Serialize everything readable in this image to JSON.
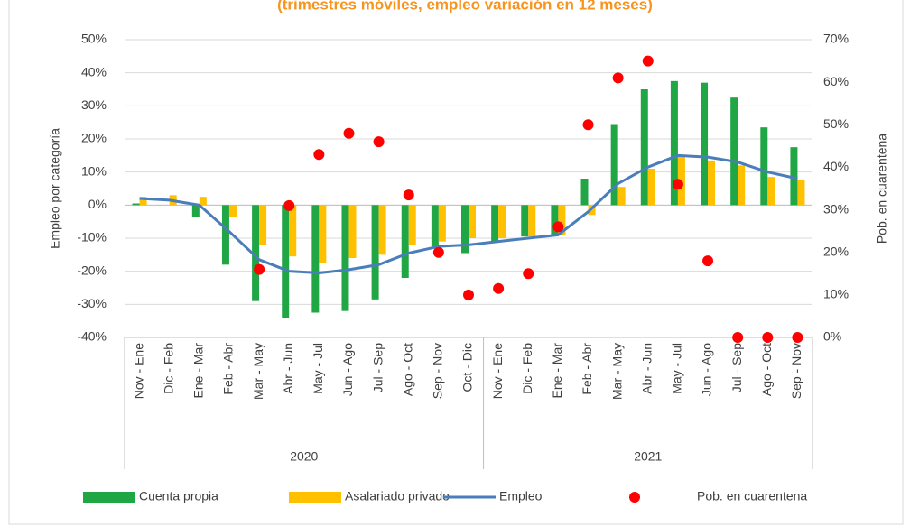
{
  "chart_data": {
    "type": "combo",
    "title": "(trimestres móviles, empleo variación en 12 meses)",
    "ylabel": "Empleo por categoría",
    "y2label": "Pob. en cuarentena",
    "categories": [
      "Nov - Ene",
      "Dic - Feb",
      "Ene - Mar",
      "Feb - Abr",
      "Mar - May",
      "Abr - Jun",
      "May - Jul",
      "Jun - Ago",
      "Jul - Sep",
      "Ago - Oct",
      "Sep - Nov",
      "Oct - Dic",
      "Nov - Ene",
      "Dic - Feb",
      "Ene - Mar",
      "Feb - Abr",
      "Mar - May",
      "Abr - Jun",
      "May - Jul",
      "Jun - Ago",
      "Jul - Sep",
      "Ago - Oct",
      "Sep - Nov"
    ],
    "groups": [
      {
        "name": "2020",
        "count": 12
      },
      {
        "name": "2021",
        "count": 11
      }
    ],
    "series": [
      {
        "name": "Cuenta propia",
        "type": "bar",
        "color": "#21a645",
        "values": [
          0.5,
          0,
          -3.5,
          -18,
          -29,
          -34,
          -32.5,
          -32,
          -28.5,
          -22,
          -12.5,
          -14.5,
          -11,
          -9.5,
          -9,
          8,
          24.5,
          35,
          37.5,
          37,
          32.5,
          23.5,
          17.5
        ]
      },
      {
        "name": "Asalariado privado",
        "type": "bar",
        "color": "#ffc000",
        "values": [
          2.5,
          3,
          2.5,
          -3.5,
          -12,
          -15.5,
          -17.5,
          -16,
          -15,
          -12,
          -11,
          -10,
          -10,
          -9.5,
          -9,
          -3,
          5.5,
          11,
          15,
          13.5,
          12,
          8.5,
          7.5
        ]
      },
      {
        "name": "Empleo",
        "type": "line",
        "color": "#4a7ebb",
        "values": [
          2,
          1.5,
          0,
          -8,
          -16.5,
          -20,
          -20.5,
          -19.5,
          -18,
          -14.5,
          -12.5,
          -12,
          -11,
          -10,
          -9,
          -2,
          6.5,
          11.5,
          15,
          14.5,
          13,
          10,
          8
        ]
      },
      {
        "name": "Pob. en cuarentena",
        "type": "scatter",
        "axis": "y2",
        "color": "#ff0000",
        "values": [
          null,
          null,
          null,
          null,
          16,
          31,
          43,
          48,
          46,
          33.5,
          20,
          10,
          11.5,
          15,
          26,
          50,
          61,
          65,
          36,
          18,
          0,
          0,
          0
        ]
      }
    ],
    "ylim": [
      -40,
      50
    ],
    "yticks": [
      {
        "value": -40,
        "label": "-40%"
      },
      {
        "value": -30,
        "label": "-30%"
      },
      {
        "value": -20,
        "label": "-20%"
      },
      {
        "value": -10,
        "label": "-10%"
      },
      {
        "value": 0,
        "label": "0%"
      },
      {
        "value": 10,
        "label": "10%"
      },
      {
        "value": 20,
        "label": "20%"
      },
      {
        "value": 30,
        "label": "30%"
      },
      {
        "value": 40,
        "label": "40%"
      },
      {
        "value": 50,
        "label": "50%"
      }
    ],
    "y2lim": [
      0,
      70
    ],
    "y2ticks": [
      {
        "value": 0,
        "label": "0%"
      },
      {
        "value": 10,
        "label": "10%"
      },
      {
        "value": 20,
        "label": "20%"
      },
      {
        "value": 30,
        "label": "30%"
      },
      {
        "value": 40,
        "label": "40%"
      },
      {
        "value": 50,
        "label": "50%"
      },
      {
        "value": 60,
        "label": "60%"
      },
      {
        "value": 70,
        "label": "70%"
      }
    ],
    "grid": true
  }
}
